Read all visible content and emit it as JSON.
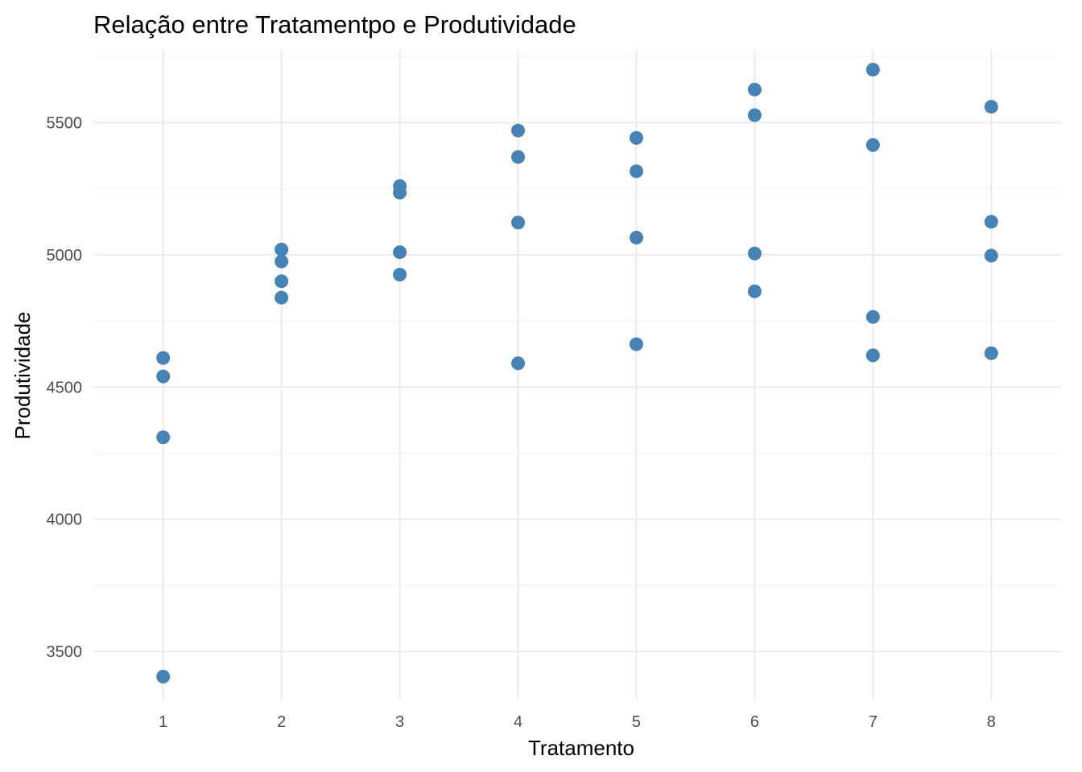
{
  "chart_data": {
    "type": "scatter",
    "title": "Relação entre Tratamentpo e Produtividade",
    "xlabel": "Tratamento",
    "ylabel": "Produtividade",
    "x_ticks": [
      "1",
      "2",
      "3",
      "4",
      "5",
      "6",
      "7",
      "8"
    ],
    "y_ticks": [
      "3500",
      "4000",
      "4500",
      "5000",
      "5500"
    ],
    "xlim": [
      0.41,
      8.59
    ],
    "ylim": [
      3315,
      5775
    ],
    "grid": true,
    "point_color": "#4682B4",
    "points": [
      {
        "x": 1,
        "y": 4610
      },
      {
        "x": 1,
        "y": 4540
      },
      {
        "x": 1,
        "y": 4310
      },
      {
        "x": 1,
        "y": 3405
      },
      {
        "x": 2,
        "y": 5020
      },
      {
        "x": 2,
        "y": 4975
      },
      {
        "x": 2,
        "y": 4900
      },
      {
        "x": 2,
        "y": 4838
      },
      {
        "x": 3,
        "y": 5260
      },
      {
        "x": 3,
        "y": 5235
      },
      {
        "x": 3,
        "y": 5010
      },
      {
        "x": 3,
        "y": 4925
      },
      {
        "x": 4,
        "y": 5470
      },
      {
        "x": 4,
        "y": 5370
      },
      {
        "x": 4,
        "y": 5122
      },
      {
        "x": 4,
        "y": 4590
      },
      {
        "x": 5,
        "y": 5442
      },
      {
        "x": 5,
        "y": 5316
      },
      {
        "x": 5,
        "y": 5065
      },
      {
        "x": 5,
        "y": 4662
      },
      {
        "x": 6,
        "y": 5625
      },
      {
        "x": 6,
        "y": 5528
      },
      {
        "x": 6,
        "y": 5005
      },
      {
        "x": 6,
        "y": 4862
      },
      {
        "x": 7,
        "y": 5700
      },
      {
        "x": 7,
        "y": 5415
      },
      {
        "x": 7,
        "y": 4765
      },
      {
        "x": 7,
        "y": 4620
      },
      {
        "x": 8,
        "y": 5560
      },
      {
        "x": 8,
        "y": 5125
      },
      {
        "x": 8,
        "y": 4997
      },
      {
        "x": 8,
        "y": 4628
      }
    ]
  }
}
